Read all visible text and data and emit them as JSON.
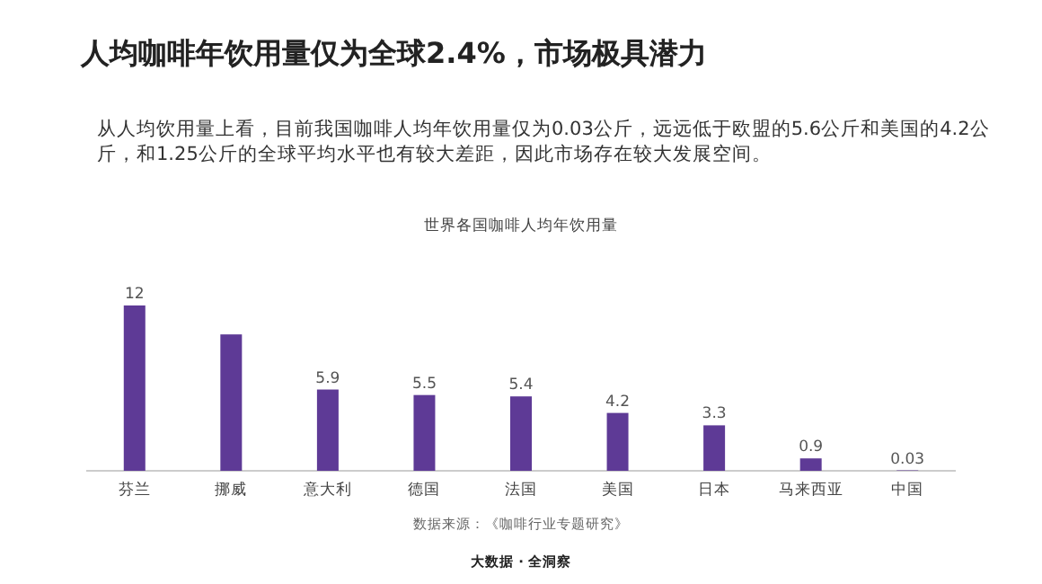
{
  "chart_data": {
    "type": "bar",
    "title": "人均咖啡年饮用量仅为全球2.4%，市场极具潜力",
    "subtitle": "世界各国咖啡人均年饮用量",
    "categories": [
      "芬兰",
      "挪威",
      "意大利",
      "德国",
      "法国",
      "美国",
      "日本",
      "马来西亚",
      "中国"
    ],
    "values": [
      12,
      9.9,
      5.9,
      5.5,
      5.4,
      4.2,
      3.3,
      0.9,
      0.03
    ],
    "value_labels": [
      "12",
      null,
      "5.9",
      "5.5",
      "5.4",
      "4.2",
      "3.3",
      "0.9",
      "0.03"
    ],
    "color": "#5e3a96",
    "annotations": [
      "从人均饮用量上看，目前我国咖啡人均年饮用量仅为0.03公斤，远远低于欧盟的5.6公斤和美国的4.2公斤，和1.25公斤的全球平均水平也有较大差距，因此市场存在较大发展空间。",
      "数据来源：《咖啡行业专题研究》",
      "大数据 · 全洞察"
    ]
  }
}
